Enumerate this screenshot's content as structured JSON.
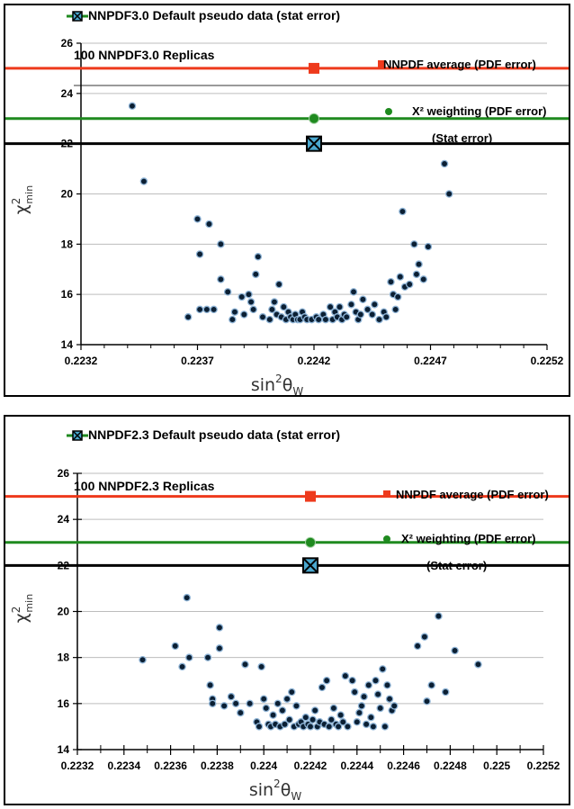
{
  "colors": {
    "pdf_average": "#ee3a1c",
    "chi2_weighting": "#1f8a1f",
    "stat_error": "#000000",
    "replica_point": "#0b1f33",
    "replica_edge": "#8fb4d6",
    "gridline": "#bdbdbd"
  },
  "chart_data": [
    {
      "type": "scatter",
      "title": "NNPDF3.0 Default pseudo data (stat error)",
      "subtitle": "100 NNPDF3.0 Replicas",
      "xlabel_main": "sin",
      "xlabel_sup": "2",
      "xlabel_greek": "θ",
      "xlabel_sub": "W",
      "ylabel_main": "χ",
      "ylabel_sup": "2",
      "ylabel_sub": "min",
      "xlim": [
        0.2232,
        0.2252
      ],
      "ylim": [
        14,
        26
      ],
      "xticks": [
        "0.2232",
        "0.2237",
        "0.2242",
        "0.2247",
        "0.2252"
      ],
      "xtick_values": [
        0.2232,
        0.2237,
        0.2242,
        0.2247,
        0.2252
      ],
      "yticks": [
        "14",
        "16",
        "18",
        "20",
        "22",
        "24",
        "26"
      ],
      "ytick_values": [
        14,
        16,
        18,
        20,
        22,
        24,
        26
      ],
      "grid": true,
      "error_bars": [
        {
          "name": "NNPDF average (PDF error)",
          "x": 0.2242,
          "y": 25.0,
          "xerr": 0.00175,
          "marker": "square",
          "color": "#ee3a1c"
        },
        {
          "name": "Χ² weighting (PDF error)",
          "x": 0.2242,
          "y": 23.0,
          "xerr": 0.00135,
          "marker": "circle",
          "color": "#1f8a1f"
        },
        {
          "name": "(Stat error)",
          "x": 0.2242,
          "y": 22.0,
          "xerr": 0.00275,
          "marker": "crossbox",
          "color": "#000000"
        }
      ],
      "points": [
        [
          0.22342,
          23.5
        ],
        [
          0.22347,
          20.5
        ],
        [
          0.22366,
          15.1
        ],
        [
          0.2237,
          19.0
        ],
        [
          0.22371,
          17.6
        ],
        [
          0.22371,
          15.4
        ],
        [
          0.22374,
          15.4
        ],
        [
          0.22375,
          18.8
        ],
        [
          0.22377,
          15.4
        ],
        [
          0.2238,
          18.0
        ],
        [
          0.2238,
          16.6
        ],
        [
          0.22383,
          16.1
        ],
        [
          0.22385,
          15.0
        ],
        [
          0.22386,
          15.3
        ],
        [
          0.22389,
          15.9
        ],
        [
          0.2239,
          15.2
        ],
        [
          0.22392,
          16.0
        ],
        [
          0.22393,
          15.7
        ],
        [
          0.22394,
          15.4
        ],
        [
          0.22395,
          16.8
        ],
        [
          0.22396,
          17.5
        ],
        [
          0.22398,
          15.1
        ],
        [
          0.22401,
          15.0
        ],
        [
          0.22402,
          15.4
        ],
        [
          0.22403,
          15.7
        ],
        [
          0.22404,
          15.2
        ],
        [
          0.22405,
          16.4
        ],
        [
          0.22406,
          15.1
        ],
        [
          0.22407,
          15.5
        ],
        [
          0.22408,
          15.0
        ],
        [
          0.22409,
          15.3
        ],
        [
          0.2241,
          15.1
        ],
        [
          0.22411,
          15.0
        ],
        [
          0.22412,
          15.2
        ],
        [
          0.22413,
          15.0
        ],
        [
          0.22414,
          15.0
        ],
        [
          0.22415,
          15.3
        ],
        [
          0.22416,
          15.1
        ],
        [
          0.22417,
          15.0
        ],
        [
          0.22419,
          15.0
        ],
        [
          0.22421,
          15.1
        ],
        [
          0.22422,
          15.0
        ],
        [
          0.22424,
          15.2
        ],
        [
          0.22425,
          15.0
        ],
        [
          0.22427,
          15.5
        ],
        [
          0.22428,
          15.0
        ],
        [
          0.22429,
          15.3
        ],
        [
          0.2243,
          15.1
        ],
        [
          0.22431,
          15.5
        ],
        [
          0.22432,
          15.0
        ],
        [
          0.22433,
          15.2
        ],
        [
          0.22434,
          15.1
        ],
        [
          0.22436,
          15.6
        ],
        [
          0.22437,
          16.1
        ],
        [
          0.22438,
          15.3
        ],
        [
          0.22439,
          15.0
        ],
        [
          0.2244,
          15.2
        ],
        [
          0.22441,
          15.8
        ],
        [
          0.22443,
          15.4
        ],
        [
          0.22445,
          15.2
        ],
        [
          0.22446,
          15.6
        ],
        [
          0.22448,
          15.0
        ],
        [
          0.2245,
          15.3
        ],
        [
          0.22451,
          15.1
        ],
        [
          0.22453,
          16.5
        ],
        [
          0.22454,
          16.0
        ],
        [
          0.22455,
          15.4
        ],
        [
          0.22456,
          15.9
        ],
        [
          0.22457,
          16.7
        ],
        [
          0.22458,
          19.3
        ],
        [
          0.22459,
          16.3
        ],
        [
          0.22461,
          16.4
        ],
        [
          0.22463,
          18.0
        ],
        [
          0.22464,
          16.8
        ],
        [
          0.22465,
          17.2
        ],
        [
          0.22467,
          16.6
        ],
        [
          0.22469,
          17.9
        ],
        [
          0.22476,
          21.2
        ],
        [
          0.22478,
          20.0
        ]
      ]
    },
    {
      "type": "scatter",
      "title": "NNPDF2.3 Default pseudo data (stat error)",
      "subtitle": "100 NNPDF2.3 Replicas",
      "xlabel_main": "sin",
      "xlabel_sup": "2",
      "xlabel_greek": "θ",
      "xlabel_sub": "W",
      "ylabel_main": "χ",
      "ylabel_sup": "2",
      "ylabel_sub": "min",
      "xlim": [
        0.2232,
        0.2252
      ],
      "ylim": [
        14,
        26
      ],
      "xticks": [
        "0.2232",
        "0.2234",
        "0.2236",
        "0.2238",
        "0.224",
        "0.2242",
        "0.2244",
        "0.2246",
        "0.2248",
        "0.225",
        "0.2252"
      ],
      "xtick_values": [
        0.2232,
        0.2234,
        0.2236,
        0.2238,
        0.224,
        0.2242,
        0.2244,
        0.2246,
        0.2248,
        0.225,
        0.2252
      ],
      "yticks": [
        "14",
        "16",
        "18",
        "20",
        "22",
        "24",
        "26"
      ],
      "ytick_values": [
        14,
        16,
        18,
        20,
        22,
        24,
        26
      ],
      "grid": true,
      "error_bars": [
        {
          "name": "NNPDF average (PDF error)",
          "x": 0.2242,
          "y": 25.0,
          "xerr": 0.0021,
          "marker": "square",
          "color": "#ee3a1c"
        },
        {
          "name": "Χ² weighting (PDF error)",
          "x": 0.2242,
          "y": 23.0,
          "xerr": 0.0021,
          "marker": "circle",
          "color": "#1f8a1f"
        },
        {
          "name": "(Stat error)",
          "x": 0.2242,
          "y": 22.0,
          "xerr": 0.0042,
          "marker": "crossbox",
          "color": "#000000"
        }
      ],
      "points": [
        [
          0.22348,
          17.9
        ],
        [
          0.22362,
          18.5
        ],
        [
          0.22365,
          17.6
        ],
        [
          0.22367,
          20.6
        ],
        [
          0.22368,
          18.0
        ],
        [
          0.22376,
          18.0
        ],
        [
          0.22377,
          16.8
        ],
        [
          0.22378,
          16.2
        ],
        [
          0.22378,
          16.0
        ],
        [
          0.22381,
          19.3
        ],
        [
          0.22381,
          18.4
        ],
        [
          0.22383,
          15.9
        ],
        [
          0.22386,
          16.3
        ],
        [
          0.22388,
          16.0
        ],
        [
          0.2239,
          15.6
        ],
        [
          0.22392,
          17.7
        ],
        [
          0.22394,
          16.0
        ],
        [
          0.22397,
          15.2
        ],
        [
          0.22398,
          15.0
        ],
        [
          0.22399,
          17.6
        ],
        [
          0.224,
          16.2
        ],
        [
          0.22401,
          15.8
        ],
        [
          0.22402,
          15.1
        ],
        [
          0.22403,
          15.0
        ],
        [
          0.22404,
          15.5
        ],
        [
          0.22405,
          15.1
        ],
        [
          0.22406,
          16.0
        ],
        [
          0.22407,
          15.0
        ],
        [
          0.22408,
          15.7
        ],
        [
          0.22409,
          15.1
        ],
        [
          0.2241,
          16.2
        ],
        [
          0.22411,
          15.3
        ],
        [
          0.22412,
          16.5
        ],
        [
          0.22413,
          15.0
        ],
        [
          0.22414,
          15.9
        ],
        [
          0.22415,
          15.1
        ],
        [
          0.22416,
          15.2
        ],
        [
          0.22417,
          15.0
        ],
        [
          0.22418,
          15.4
        ],
        [
          0.22419,
          15.1
        ],
        [
          0.2242,
          15.0
        ],
        [
          0.22421,
          15.3
        ],
        [
          0.22422,
          15.7
        ],
        [
          0.22423,
          15.0
        ],
        [
          0.22424,
          15.2
        ],
        [
          0.22425,
          16.7
        ],
        [
          0.22426,
          15.1
        ],
        [
          0.22427,
          17.0
        ],
        [
          0.22428,
          15.0
        ],
        [
          0.22429,
          15.3
        ],
        [
          0.2243,
          15.8
        ],
        [
          0.22431,
          15.1
        ],
        [
          0.22432,
          15.0
        ],
        [
          0.22433,
          15.5
        ],
        [
          0.22434,
          15.2
        ],
        [
          0.22435,
          17.2
        ],
        [
          0.22436,
          15.0
        ],
        [
          0.22438,
          17.0
        ],
        [
          0.22439,
          16.5
        ],
        [
          0.2244,
          15.2
        ],
        [
          0.22441,
          15.6
        ],
        [
          0.22442,
          15.9
        ],
        [
          0.22443,
          16.3
        ],
        [
          0.22444,
          15.1
        ],
        [
          0.22445,
          16.8
        ],
        [
          0.22446,
          15.4
        ],
        [
          0.22447,
          15.0
        ],
        [
          0.22448,
          17.0
        ],
        [
          0.22449,
          16.4
        ],
        [
          0.2245,
          15.8
        ],
        [
          0.22451,
          17.5
        ],
        [
          0.22452,
          15.0
        ],
        [
          0.22453,
          16.8
        ],
        [
          0.22454,
          16.2
        ],
        [
          0.22455,
          15.7
        ],
        [
          0.22456,
          15.9
        ],
        [
          0.22466,
          18.5
        ],
        [
          0.22469,
          18.9
        ],
        [
          0.2247,
          16.1
        ],
        [
          0.22472,
          16.8
        ],
        [
          0.22475,
          19.8
        ],
        [
          0.22478,
          16.5
        ],
        [
          0.22482,
          18.3
        ],
        [
          0.22492,
          17.7
        ]
      ]
    }
  ]
}
